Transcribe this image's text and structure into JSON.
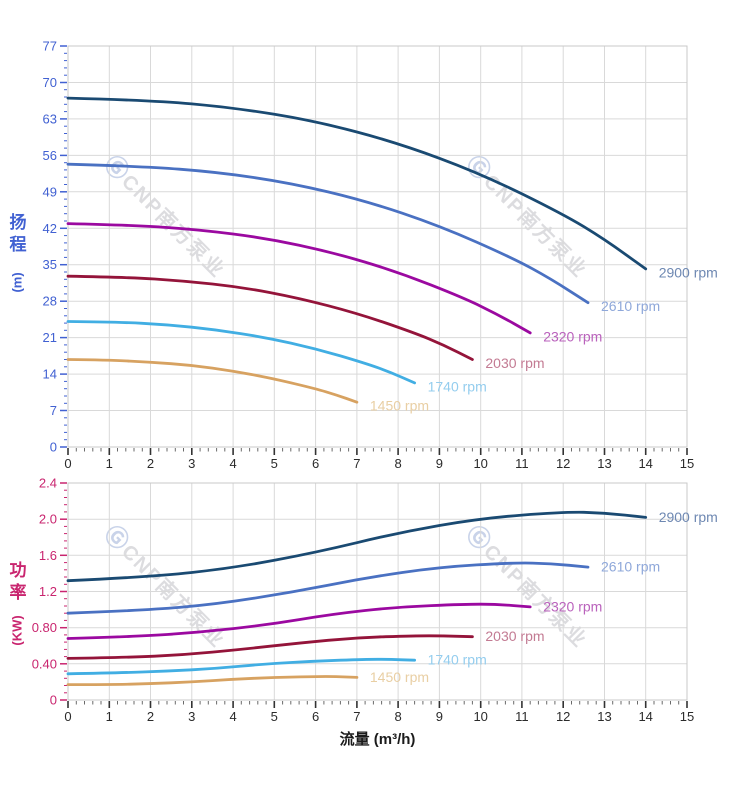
{
  "watermark": {
    "logo": "Ⓖ",
    "text": "CNP南方泵业"
  },
  "x_axis": {
    "label": "流量 (m³/h)",
    "min": 0,
    "max": 15,
    "major_step": 1,
    "minor_step": 0.2,
    "tick_labels": [
      "0",
      "1",
      "2",
      "3",
      "4",
      "5",
      "6",
      "7",
      "8",
      "9",
      "10",
      "11",
      "12",
      "13",
      "14",
      "15"
    ],
    "tick_color": "#2b2b2b"
  },
  "chart_data": [
    {
      "type": "line",
      "id": "head-flow-chart",
      "title": "",
      "xlabel": "流量 (m³/h)",
      "ylabel": "扬程(m)",
      "ylabel_chars": [
        "扬",
        "程"
      ],
      "ylabel_unit": "(m)",
      "axis_color": "#4161d2",
      "xlim": [
        0,
        15
      ],
      "ylim": [
        0,
        77
      ],
      "y_major_step": 7,
      "y_minor_step": 1.4,
      "y_tick_labels": [
        "0",
        "7",
        "14",
        "21",
        "28",
        "35",
        "42",
        "49",
        "56",
        "63",
        "70",
        "77"
      ],
      "grid": true,
      "legend_position": "curve-end",
      "series": [
        {
          "name": "2900 rpm",
          "color": "#1a4a72",
          "label_color": "#6e88b2",
          "points": [
            [
              0,
              67
            ],
            [
              2,
              66.6
            ],
            [
              4,
              65.2
            ],
            [
              6,
              62.6
            ],
            [
              8,
              58.4
            ],
            [
              10,
              52.5
            ],
            [
              12,
              44.7
            ],
            [
              13,
              39.9
            ],
            [
              14,
              34.2
            ]
          ]
        },
        {
          "name": "2610 rpm",
          "color": "#4a71c2",
          "label_color": "#8fa8da",
          "points": [
            [
              0,
              54.3
            ],
            [
              1.8,
              53.9
            ],
            [
              3.6,
              52.8
            ],
            [
              5.4,
              50.7
            ],
            [
              7.2,
              47.3
            ],
            [
              9,
              42.5
            ],
            [
              10.8,
              36.2
            ],
            [
              11.7,
              32.3
            ],
            [
              12.6,
              27.7
            ]
          ]
        },
        {
          "name": "2320 rpm",
          "color": "#9b09a0",
          "label_color": "#ba62bc",
          "points": [
            [
              0,
              42.9
            ],
            [
              1.6,
              42.6
            ],
            [
              3.2,
              41.7
            ],
            [
              4.8,
              40.1
            ],
            [
              6.4,
              37.4
            ],
            [
              8,
              33.6
            ],
            [
              9.6,
              28.6
            ],
            [
              10.4,
              25.5
            ],
            [
              11.2,
              21.9
            ]
          ]
        },
        {
          "name": "2030 rpm",
          "color": "#94143a",
          "label_color": "#c37b93",
          "points": [
            [
              0,
              32.8
            ],
            [
              1.4,
              32.6
            ],
            [
              2.8,
              31.9
            ],
            [
              4.2,
              30.7
            ],
            [
              5.6,
              28.6
            ],
            [
              7,
              25.7
            ],
            [
              8.4,
              21.9
            ],
            [
              9.1,
              19.6
            ],
            [
              9.8,
              16.8
            ]
          ]
        },
        {
          "name": "1740 rpm",
          "color": "#41aee3",
          "label_color": "#94cdee",
          "points": [
            [
              0,
              24.1
            ],
            [
              1.2,
              24
            ],
            [
              2.4,
              23.5
            ],
            [
              3.6,
              22.5
            ],
            [
              4.8,
              21
            ],
            [
              6,
              18.9
            ],
            [
              7.2,
              16.1
            ],
            [
              7.8,
              14.4
            ],
            [
              8.4,
              12.3
            ]
          ]
        },
        {
          "name": "1450 rpm",
          "color": "#d7a261",
          "label_color": "#e9cfa4",
          "points": [
            [
              0,
              16.8
            ],
            [
              1,
              16.7
            ],
            [
              2,
              16.3
            ],
            [
              3,
              15.7
            ],
            [
              4,
              14.6
            ],
            [
              5,
              13.1
            ],
            [
              6,
              11.2
            ],
            [
              6.5,
              10
            ],
            [
              7,
              8.6
            ]
          ]
        }
      ]
    },
    {
      "type": "line",
      "id": "power-flow-chart",
      "title": "",
      "xlabel": "流量 (m³/h)",
      "ylabel": "功率(KW)",
      "ylabel_chars": [
        "功",
        "率"
      ],
      "ylabel_unit": "(KW)",
      "axis_color": "#c9256f",
      "xlim": [
        0,
        15
      ],
      "ylim": [
        0,
        2.4
      ],
      "y_major_step": 0.4,
      "y_minor_step": 0.08,
      "y_tick_labels": [
        "0",
        "0.40",
        "0.80",
        "1.2",
        "1.6",
        "2.0",
        "2.4"
      ],
      "grid": true,
      "legend_position": "curve-end",
      "series": [
        {
          "name": "2900 rpm",
          "color": "#1a4a72",
          "label_color": "#6e88b2",
          "points": [
            [
              0,
              1.32
            ],
            [
              2,
              1.36
            ],
            [
              4,
              1.46
            ],
            [
              6,
              1.63
            ],
            [
              8,
              1.85
            ],
            [
              10,
              2.01
            ],
            [
              12,
              2.08
            ],
            [
              13,
              2.07
            ],
            [
              14,
              2.02
            ]
          ]
        },
        {
          "name": "2610 rpm",
          "color": "#4a71c2",
          "label_color": "#8fa8da",
          "points": [
            [
              0,
              0.96
            ],
            [
              1.8,
              0.99
            ],
            [
              3.6,
              1.06
            ],
            [
              5.4,
              1.19
            ],
            [
              7.2,
              1.35
            ],
            [
              9,
              1.47
            ],
            [
              10.8,
              1.52
            ],
            [
              11.7,
              1.51
            ],
            [
              12.6,
              1.47
            ]
          ]
        },
        {
          "name": "2320 rpm",
          "color": "#9b09a0",
          "label_color": "#ba62bc",
          "points": [
            [
              0,
              0.68
            ],
            [
              1.6,
              0.7
            ],
            [
              3.2,
              0.75
            ],
            [
              4.8,
              0.83
            ],
            [
              6.4,
              0.95
            ],
            [
              8,
              1.03
            ],
            [
              9.6,
              1.06
            ],
            [
              10.4,
              1.06
            ],
            [
              11.2,
              1.03
            ]
          ]
        },
        {
          "name": "2030 rpm",
          "color": "#94143a",
          "label_color": "#c37b93",
          "points": [
            [
              0,
              0.46
            ],
            [
              1.4,
              0.47
            ],
            [
              2.8,
              0.5
            ],
            [
              4.2,
              0.56
            ],
            [
              5.6,
              0.63
            ],
            [
              7,
              0.69
            ],
            [
              8.4,
              0.71
            ],
            [
              9.1,
              0.71
            ],
            [
              9.8,
              0.7
            ]
          ]
        },
        {
          "name": "1740 rpm",
          "color": "#41aee3",
          "label_color": "#94cdee",
          "points": [
            [
              0,
              0.29
            ],
            [
              1.2,
              0.3
            ],
            [
              2.4,
              0.32
            ],
            [
              3.6,
              0.35
            ],
            [
              4.8,
              0.4
            ],
            [
              6,
              0.43
            ],
            [
              7.2,
              0.45
            ],
            [
              7.8,
              0.45
            ],
            [
              8.4,
              0.44
            ]
          ]
        },
        {
          "name": "1450 rpm",
          "color": "#d7a261",
          "label_color": "#e9cfa4",
          "points": [
            [
              0,
              0.17
            ],
            [
              1,
              0.17
            ],
            [
              2,
              0.18
            ],
            [
              3,
              0.2
            ],
            [
              4,
              0.23
            ],
            [
              5,
              0.25
            ],
            [
              6,
              0.26
            ],
            [
              6.5,
              0.26
            ],
            [
              7,
              0.25
            ]
          ]
        }
      ]
    }
  ]
}
